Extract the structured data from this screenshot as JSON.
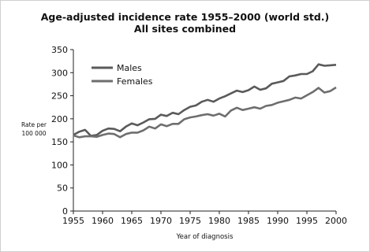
{
  "chart_data": {
    "type": "line",
    "title": "Age-adjusted incidence rate 1955–2000 (world std.)",
    "subtitle": "All sites combined",
    "xlabel": "Year of diagnosis",
    "ylabel": [
      "Rate per",
      "100 000"
    ],
    "xlim": [
      1955,
      2000
    ],
    "ylim": [
      0,
      350
    ],
    "xticks": [
      "1955",
      "1960",
      "1965",
      "1970",
      "1975",
      "1980",
      "1985",
      "1990",
      "1995",
      "2000"
    ],
    "yticks": [
      "0",
      "50",
      "100",
      "150",
      "200",
      "250",
      "300",
      "350"
    ],
    "grid": false,
    "legend_position": "top-left",
    "series": [
      {
        "name": "Males",
        "color": "#5a5a5a",
        "x": [
          1955,
          1956,
          1957,
          1958,
          1959,
          1960,
          1961,
          1962,
          1963,
          1964,
          1965,
          1966,
          1967,
          1968,
          1969,
          1970,
          1971,
          1972,
          1973,
          1974,
          1975,
          1976,
          1977,
          1978,
          1979,
          1980,
          1981,
          1982,
          1983,
          1984,
          1985,
          1986,
          1987,
          1988,
          1989,
          1990,
          1991,
          1992,
          1993,
          1994,
          1995,
          1996,
          1997,
          1998,
          1999,
          2000
        ],
        "values": [
          165,
          172,
          176,
          163,
          165,
          174,
          179,
          178,
          173,
          183,
          190,
          186,
          192,
          199,
          200,
          209,
          206,
          213,
          210,
          219,
          226,
          229,
          237,
          241,
          237,
          244,
          249,
          255,
          261,
          258,
          262,
          270,
          263,
          266,
          276,
          279,
          282,
          292,
          294,
          297,
          297,
          303,
          318,
          315,
          316,
          317
        ]
      },
      {
        "name": "Females",
        "color": "#6e6e6e",
        "x": [
          1955,
          1956,
          1957,
          1958,
          1959,
          1960,
          1961,
          1962,
          1963,
          1964,
          1965,
          1966,
          1967,
          1968,
          1969,
          1970,
          1971,
          1972,
          1973,
          1974,
          1975,
          1976,
          1977,
          1978,
          1979,
          1980,
          1981,
          1982,
          1983,
          1984,
          1985,
          1986,
          1987,
          1988,
          1989,
          1990,
          1991,
          1992,
          1993,
          1994,
          1995,
          1996,
          1997,
          1998,
          1999,
          2000
        ],
        "values": [
          164,
          160,
          162,
          162,
          161,
          165,
          168,
          167,
          160,
          167,
          170,
          170,
          175,
          183,
          179,
          188,
          184,
          189,
          189,
          199,
          203,
          205,
          208,
          210,
          207,
          211,
          205,
          218,
          224,
          219,
          222,
          225,
          222,
          228,
          230,
          235,
          238,
          241,
          246,
          244,
          251,
          258,
          267,
          257,
          260,
          268
        ]
      }
    ]
  }
}
